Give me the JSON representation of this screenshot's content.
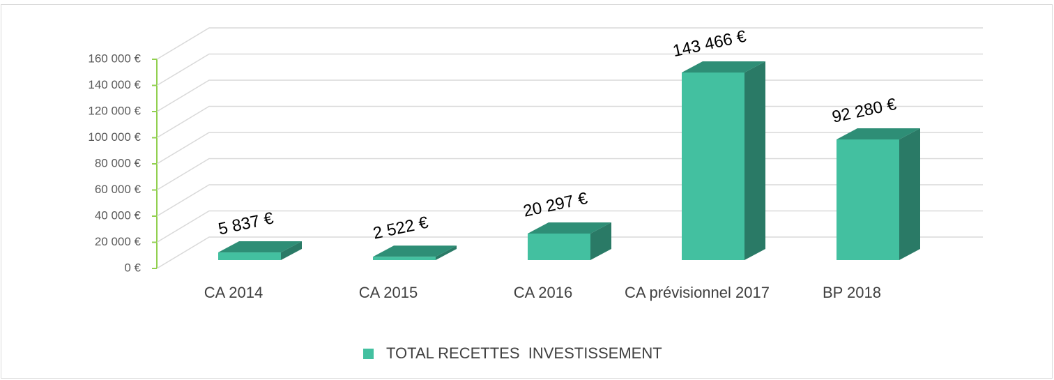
{
  "chart_data": {
    "type": "bar3d",
    "categories": [
      "CA 2014",
      "CA 2015",
      "CA 2016",
      "CA prévisionnel 2017",
      "BP 2018"
    ],
    "series": [
      {
        "name": "TOTAL RECETTES  INVESTISSEMENT",
        "color": "#43c0a0",
        "values": [
          5837,
          2522,
          20297,
          143466,
          92280
        ],
        "value_labels": [
          "5 837 €",
          "2 522 €",
          "20 297 €",
          "143 466 €",
          "92 280 €"
        ]
      }
    ],
    "ylim": [
      0,
      160000
    ],
    "yticks": [
      {
        "value": 0,
        "label": "0 €"
      },
      {
        "value": 20000,
        "label": "20 000 €"
      },
      {
        "value": 40000,
        "label": "40 000 €"
      },
      {
        "value": 60000,
        "label": "60 000 €"
      },
      {
        "value": 80000,
        "label": "80 000 €"
      },
      {
        "value": 100000,
        "label": "100 000 €"
      },
      {
        "value": 120000,
        "label": "120 000 €"
      },
      {
        "value": 140000,
        "label": "140 000 €"
      },
      {
        "value": 160000,
        "label": "160 000 €"
      }
    ],
    "grid": true,
    "legend": "bottom"
  }
}
